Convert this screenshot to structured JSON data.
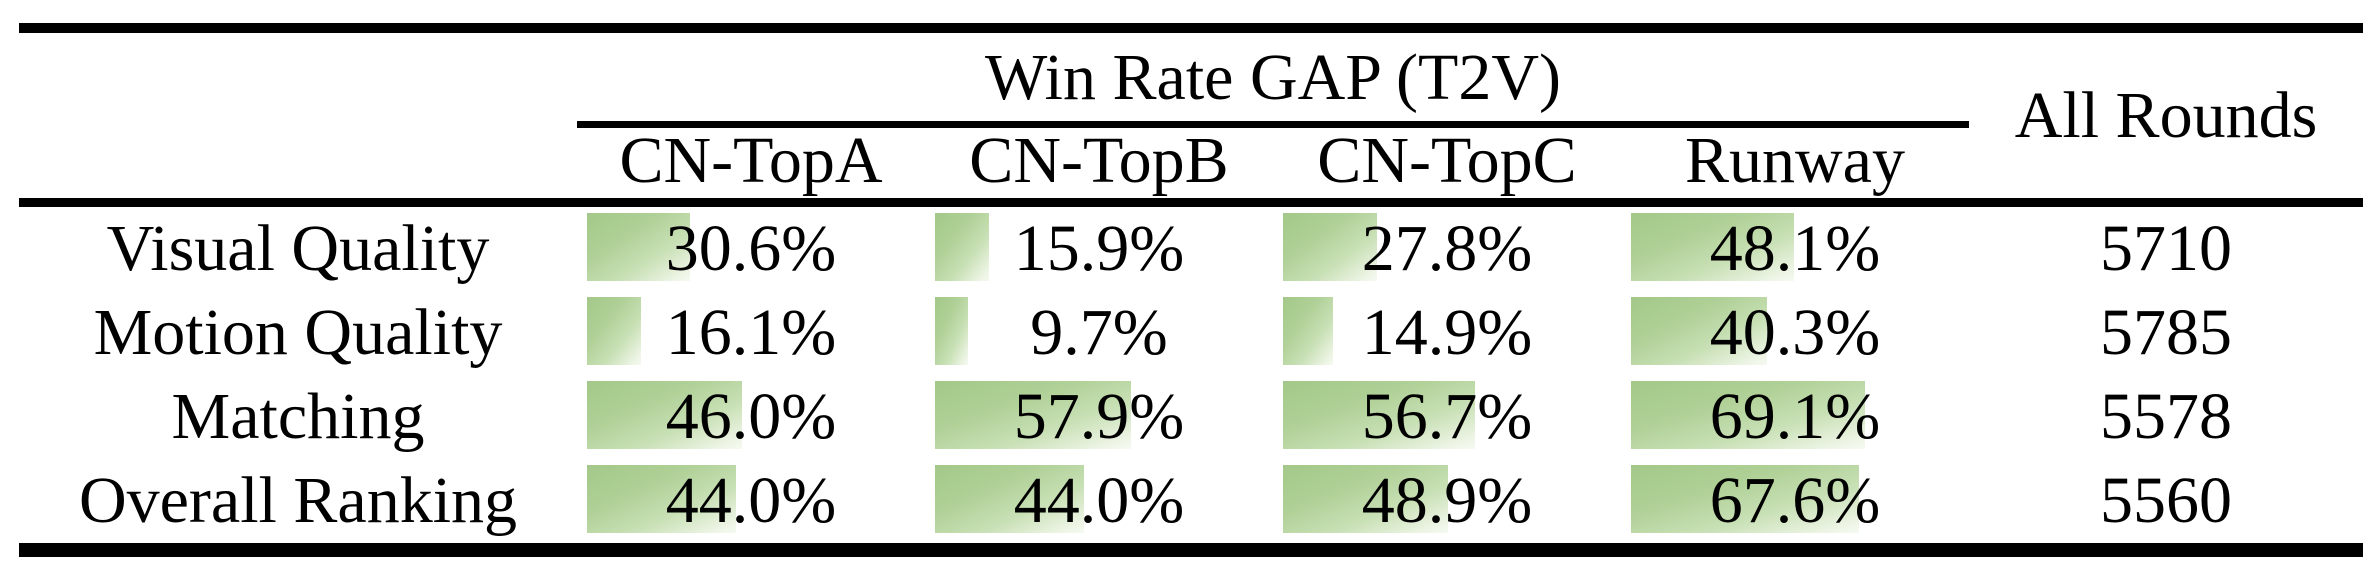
{
  "table": {
    "title": "Win Rate GAP (T2V)",
    "all_rounds_header": "All Rounds",
    "model_headers": [
      "CN-TopA",
      "CN-TopB",
      "CN-TopC",
      "Runway"
    ],
    "rows": [
      {
        "label": "Visual Quality",
        "cells": [
          {
            "text": "30.6%",
            "value": 30.6
          },
          {
            "text": "15.9%",
            "value": 15.9
          },
          {
            "text": "27.8%",
            "value": 27.8
          },
          {
            "text": "48.1%",
            "value": 48.1
          }
        ],
        "all_rounds": "5710"
      },
      {
        "label": "Motion Quality",
        "cells": [
          {
            "text": "16.1%",
            "value": 16.1
          },
          {
            "text": "9.7%",
            "value": 9.7
          },
          {
            "text": "14.9%",
            "value": 14.9
          },
          {
            "text": "40.3%",
            "value": 40.3
          }
        ],
        "all_rounds": "5785"
      },
      {
        "label": "Matching",
        "cells": [
          {
            "text": "46.0%",
            "value": 46.0
          },
          {
            "text": "57.9%",
            "value": 57.9
          },
          {
            "text": "56.7%",
            "value": 56.7
          },
          {
            "text": "69.1%",
            "value": 69.1
          }
        ],
        "all_rounds": "5578"
      },
      {
        "label": "Overall Ranking",
        "cells": [
          {
            "text": "44.0%",
            "value": 44.0
          },
          {
            "text": "44.0%",
            "value": 44.0
          },
          {
            "text": "48.9%",
            "value": 48.9
          },
          {
            "text": "67.6%",
            "value": 67.6
          }
        ],
        "all_rounds": "5560"
      }
    ]
  },
  "colors": {
    "bar_green_start": "#a3c889",
    "bar_green_end": "#f6faf2",
    "rule_color": "#000000"
  },
  "chart_data": {
    "type": "table",
    "title": "Win Rate GAP (T2V)",
    "columns": [
      "",
      "CN-TopA",
      "CN-TopB",
      "CN-TopC",
      "Runway",
      "All Rounds"
    ],
    "series": [
      {
        "name": "Visual Quality",
        "values": [
          30.6,
          15.9,
          27.8,
          48.1
        ],
        "all_rounds": 5710
      },
      {
        "name": "Motion Quality",
        "values": [
          16.1,
          9.7,
          14.9,
          40.3
        ],
        "all_rounds": 5785
      },
      {
        "name": "Matching",
        "values": [
          46.0,
          57.9,
          56.7,
          69.1
        ],
        "all_rounds": 5578
      },
      {
        "name": "Overall Ranking",
        "values": [
          44.0,
          44.0,
          48.9,
          67.6
        ],
        "all_rounds": 5560
      }
    ],
    "value_unit": "%",
    "bar_scale_max": 100,
    "layout": "in-cell horizontal data bars, green gradient, bar length = percent of cell width"
  }
}
